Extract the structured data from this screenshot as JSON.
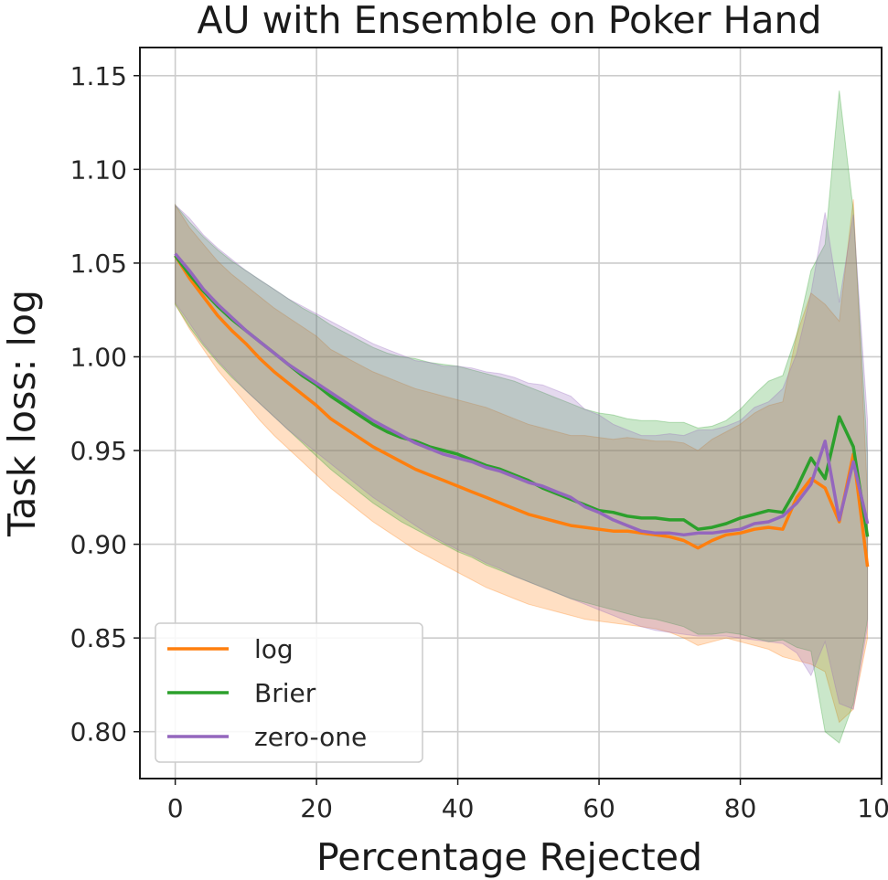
{
  "chart_data": {
    "type": "line",
    "title": "AU with Ensemble on Poker Hand",
    "xlabel": "Percentage Rejected",
    "ylabel": "Task loss: log",
    "xlim": [
      -5,
      100
    ],
    "ylim": [
      0.775,
      1.165
    ],
    "xticks": [
      "0",
      "20",
      "40",
      "60",
      "80",
      "100"
    ],
    "yticks": [
      "0.80",
      "0.85",
      "0.90",
      "0.95",
      "1.00",
      "1.05",
      "1.10",
      "1.15"
    ],
    "grid": true,
    "legend": "lower-left",
    "x": [
      0,
      2,
      4,
      6,
      8,
      10,
      12,
      14,
      16,
      18,
      20,
      22,
      24,
      26,
      28,
      30,
      32,
      34,
      36,
      38,
      40,
      42,
      44,
      46,
      48,
      50,
      52,
      54,
      56,
      58,
      60,
      62,
      64,
      66,
      68,
      70,
      72,
      74,
      76,
      78,
      80,
      82,
      84,
      86,
      88,
      90,
      92,
      94,
      96,
      98
    ],
    "series": [
      {
        "name": "log",
        "color": "#ff7f0e",
        "values": [
          1.054,
          1.042,
          1.032,
          1.022,
          1.014,
          1.007,
          0.999,
          0.992,
          0.986,
          0.98,
          0.974,
          0.967,
          0.962,
          0.957,
          0.952,
          0.948,
          0.944,
          0.94,
          0.937,
          0.934,
          0.931,
          0.928,
          0.925,
          0.922,
          0.919,
          0.916,
          0.914,
          0.912,
          0.91,
          0.909,
          0.908,
          0.907,
          0.907,
          0.906,
          0.905,
          0.904,
          0.902,
          0.898,
          0.902,
          0.905,
          0.906,
          0.908,
          0.909,
          0.908,
          0.925,
          0.935,
          0.93,
          0.912,
          0.948,
          0.888
        ],
        "lower": [
          1.028,
          1.015,
          1.004,
          0.993,
          0.984,
          0.975,
          0.966,
          0.958,
          0.951,
          0.944,
          0.937,
          0.93,
          0.924,
          0.918,
          0.912,
          0.907,
          0.902,
          0.897,
          0.893,
          0.889,
          0.885,
          0.881,
          0.877,
          0.874,
          0.871,
          0.868,
          0.866,
          0.864,
          0.862,
          0.86,
          0.859,
          0.858,
          0.857,
          0.856,
          0.855,
          0.853,
          0.85,
          0.846,
          0.848,
          0.85,
          0.848,
          0.846,
          0.844,
          0.84,
          0.838,
          0.836,
          0.832,
          0.805,
          0.812,
          0.85
        ],
        "upper": [
          1.081,
          1.069,
          1.06,
          1.051,
          1.044,
          1.038,
          1.032,
          1.026,
          1.021,
          1.016,
          1.011,
          1.004,
          1.0,
          0.996,
          0.992,
          0.989,
          0.986,
          0.983,
          0.981,
          0.979,
          0.977,
          0.975,
          0.973,
          0.97,
          0.967,
          0.964,
          0.962,
          0.96,
          0.958,
          0.958,
          0.957,
          0.956,
          0.957,
          0.956,
          0.955,
          0.955,
          0.954,
          0.95,
          0.956,
          0.96,
          0.964,
          0.97,
          0.974,
          0.976,
          1.012,
          1.034,
          1.028,
          1.019,
          1.084,
          0.926
        ]
      },
      {
        "name": "Brier",
        "color": "#2ca02c",
        "values": [
          1.054,
          1.044,
          1.035,
          1.027,
          1.02,
          1.014,
          1.008,
          1.002,
          0.996,
          0.99,
          0.985,
          0.979,
          0.974,
          0.969,
          0.964,
          0.96,
          0.957,
          0.955,
          0.952,
          0.95,
          0.948,
          0.945,
          0.942,
          0.94,
          0.937,
          0.934,
          0.93,
          0.927,
          0.924,
          0.921,
          0.918,
          0.917,
          0.915,
          0.914,
          0.914,
          0.913,
          0.913,
          0.908,
          0.909,
          0.911,
          0.914,
          0.916,
          0.918,
          0.917,
          0.93,
          0.946,
          0.935,
          0.968,
          0.952,
          0.904
        ],
        "lower": [
          1.028,
          1.016,
          1.006,
          0.997,
          0.989,
          0.982,
          0.975,
          0.968,
          0.961,
          0.954,
          0.947,
          0.94,
          0.934,
          0.928,
          0.922,
          0.917,
          0.912,
          0.908,
          0.904,
          0.9,
          0.896,
          0.893,
          0.889,
          0.886,
          0.883,
          0.88,
          0.877,
          0.874,
          0.871,
          0.869,
          0.867,
          0.865,
          0.863,
          0.861,
          0.86,
          0.858,
          0.856,
          0.852,
          0.852,
          0.853,
          0.852,
          0.85,
          0.848,
          0.849,
          0.845,
          0.843,
          0.8,
          0.794,
          0.815,
          0.86
        ],
        "upper": [
          1.081,
          1.072,
          1.064,
          1.057,
          1.051,
          1.046,
          1.041,
          1.036,
          1.031,
          1.026,
          1.022,
          1.017,
          1.013,
          1.009,
          1.005,
          1.002,
          1.0,
          0.999,
          0.997,
          0.996,
          0.995,
          0.993,
          0.991,
          0.989,
          0.987,
          0.984,
          0.981,
          0.978,
          0.975,
          0.972,
          0.97,
          0.969,
          0.967,
          0.966,
          0.966,
          0.965,
          0.965,
          0.962,
          0.963,
          0.966,
          0.972,
          0.98,
          0.987,
          0.99,
          1.012,
          1.046,
          1.06,
          1.142,
          1.078,
          0.948
        ]
      },
      {
        "name": "zero-one",
        "color": "#9467bd",
        "values": [
          1.055,
          1.046,
          1.036,
          1.028,
          1.021,
          1.014,
          1.008,
          1.002,
          0.996,
          0.991,
          0.986,
          0.981,
          0.976,
          0.971,
          0.966,
          0.962,
          0.958,
          0.954,
          0.951,
          0.948,
          0.946,
          0.944,
          0.941,
          0.939,
          0.936,
          0.933,
          0.931,
          0.928,
          0.925,
          0.92,
          0.917,
          0.913,
          0.91,
          0.907,
          0.906,
          0.906,
          0.905,
          0.906,
          0.906,
          0.907,
          0.908,
          0.911,
          0.912,
          0.915,
          0.922,
          0.932,
          0.955,
          0.913,
          0.944,
          0.911
        ],
        "lower": [
          1.029,
          1.018,
          1.007,
          0.998,
          0.99,
          0.982,
          0.975,
          0.968,
          0.961,
          0.955,
          0.949,
          0.943,
          0.937,
          0.931,
          0.925,
          0.92,
          0.915,
          0.91,
          0.905,
          0.901,
          0.897,
          0.894,
          0.89,
          0.887,
          0.883,
          0.88,
          0.877,
          0.874,
          0.871,
          0.868,
          0.865,
          0.862,
          0.859,
          0.856,
          0.854,
          0.853,
          0.852,
          0.851,
          0.851,
          0.851,
          0.85,
          0.849,
          0.848,
          0.847,
          0.842,
          0.83,
          0.848,
          0.815,
          0.812,
          0.856
        ],
        "upper": [
          1.081,
          1.074,
          1.065,
          1.058,
          1.052,
          1.046,
          1.041,
          1.036,
          1.031,
          1.027,
          1.023,
          1.019,
          1.015,
          1.011,
          1.007,
          1.004,
          1.001,
          0.998,
          0.997,
          0.995,
          0.995,
          0.994,
          0.992,
          0.991,
          0.989,
          0.986,
          0.985,
          0.982,
          0.979,
          0.972,
          0.969,
          0.964,
          0.961,
          0.958,
          0.958,
          0.959,
          0.958,
          0.961,
          0.961,
          0.963,
          0.966,
          0.973,
          0.976,
          0.983,
          1.002,
          1.034,
          1.077,
          1.029,
          1.076,
          0.966
        ]
      }
    ]
  }
}
